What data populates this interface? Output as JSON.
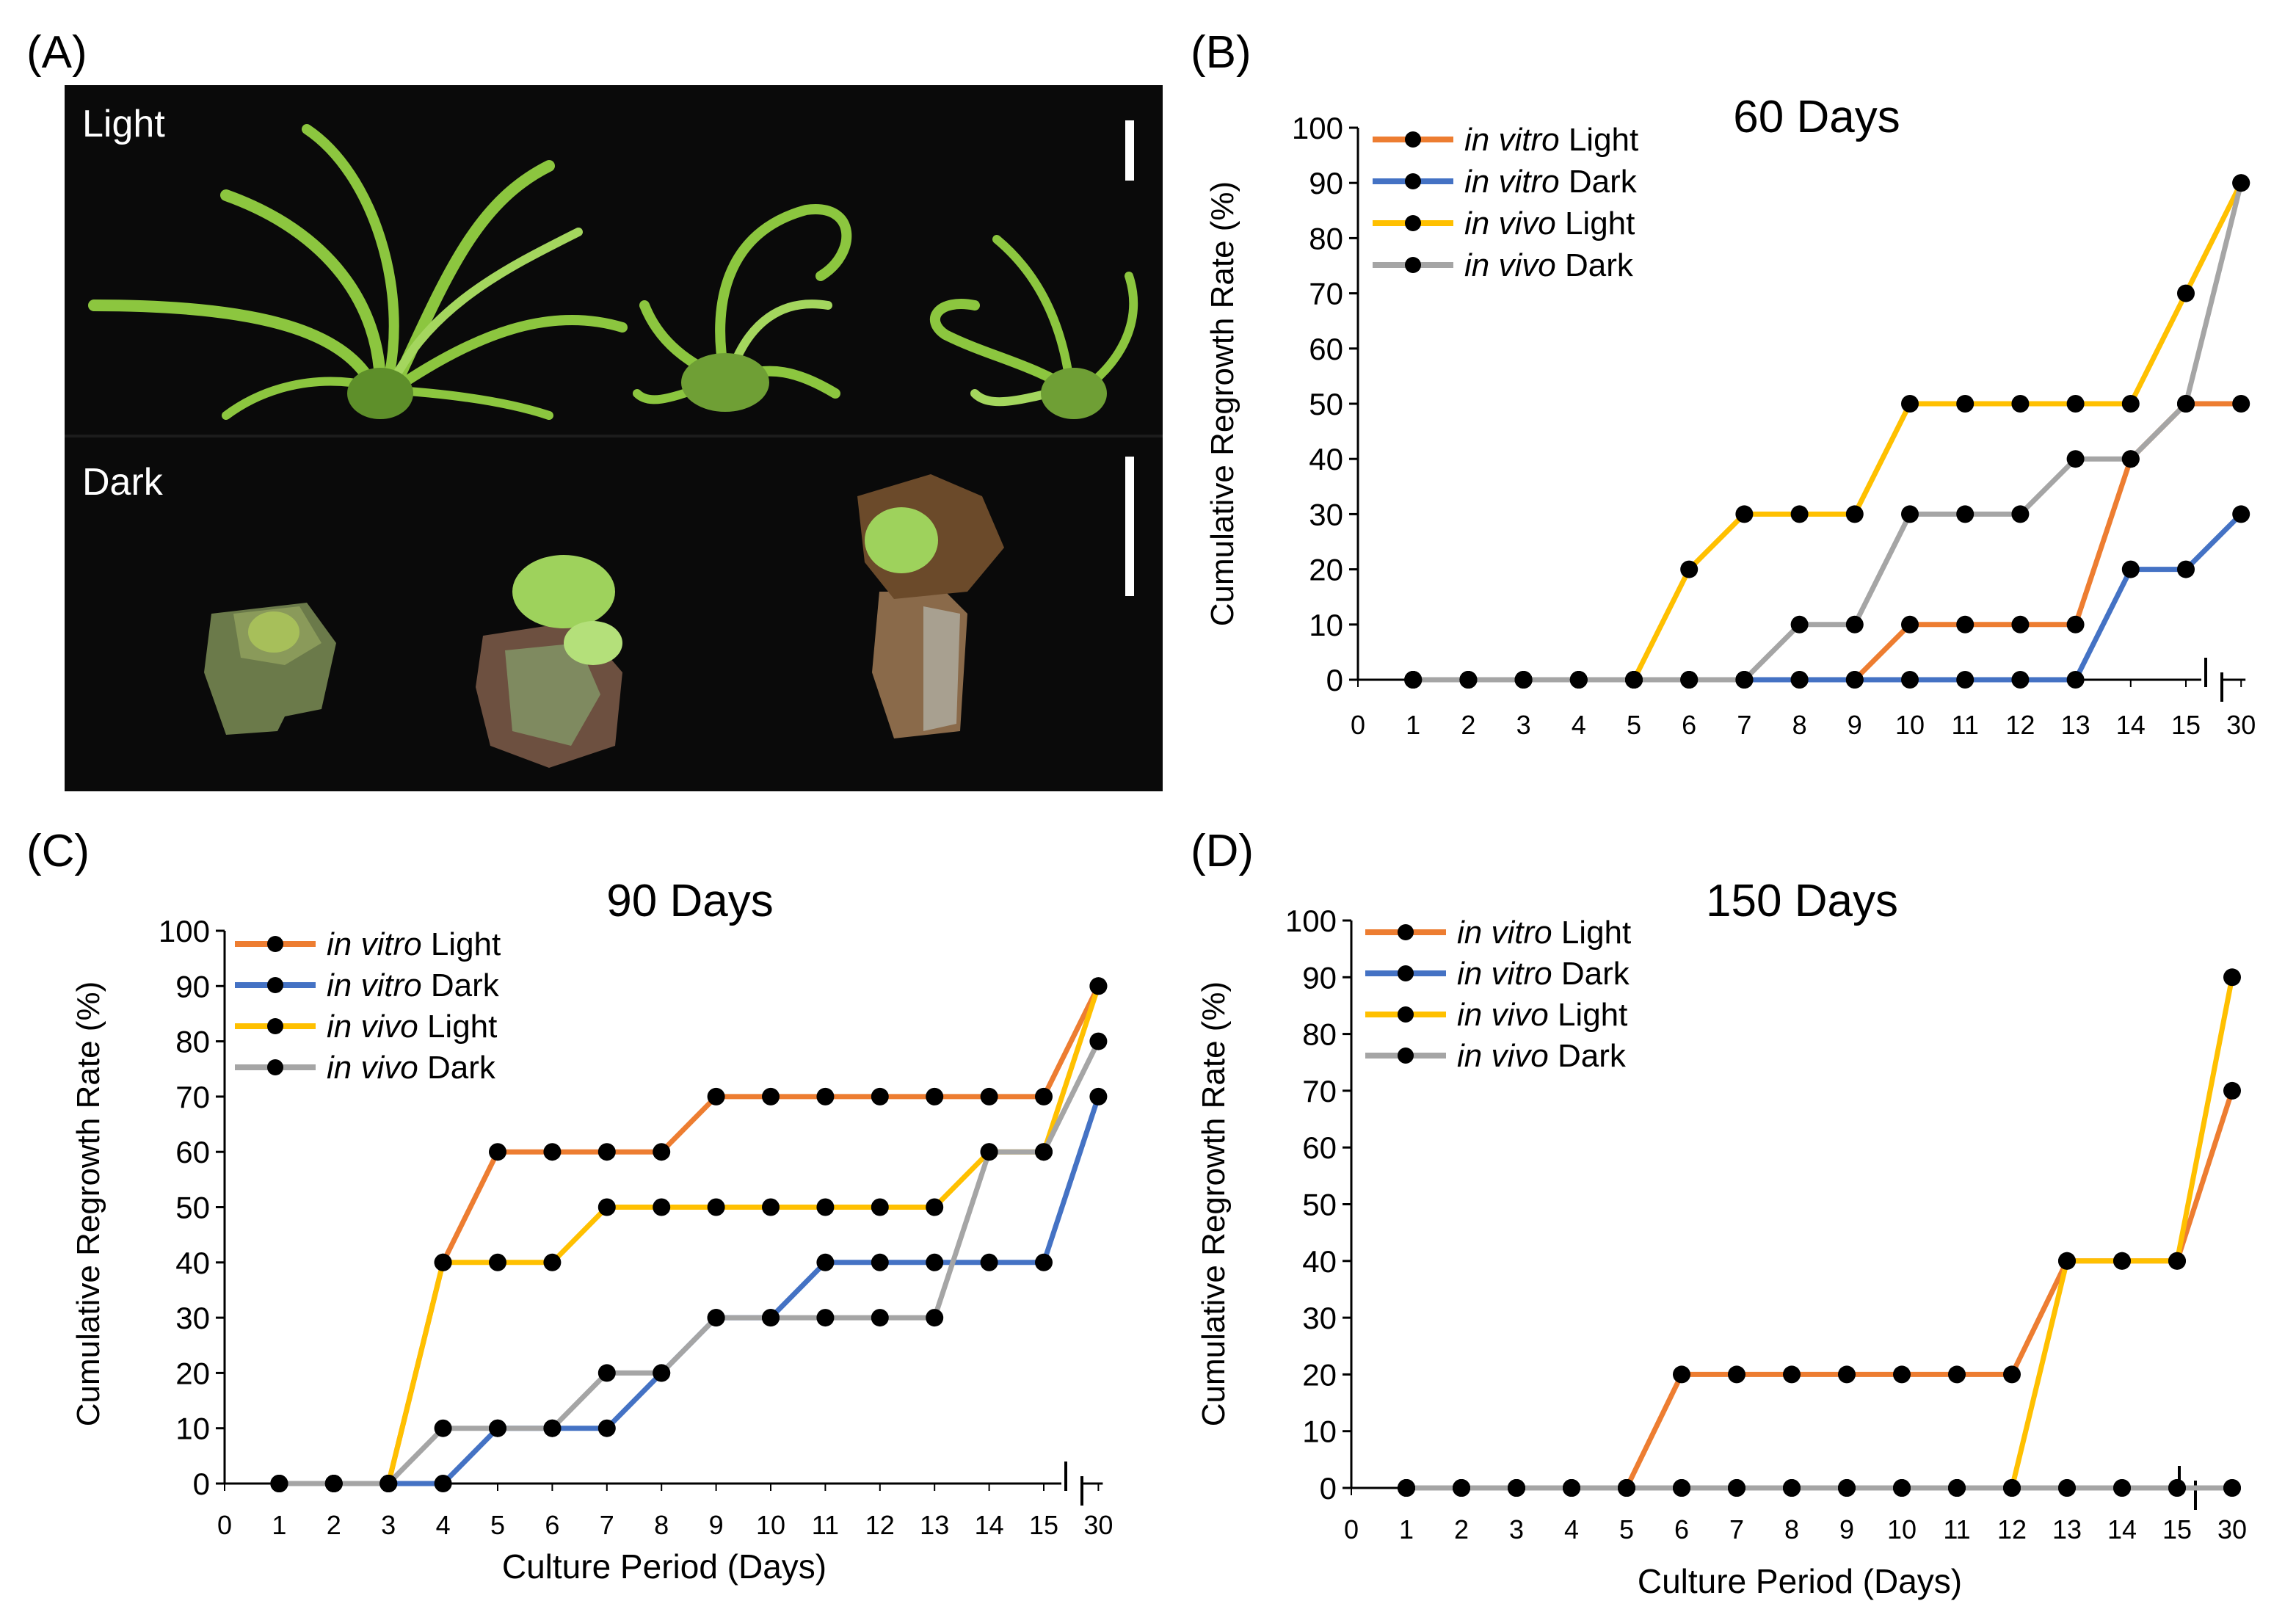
{
  "panel_labels": {
    "a": "(A)",
    "b": "(B)",
    "c": "(C)",
    "d": "(D)"
  },
  "photo": {
    "light_label": "Light",
    "dark_label": "Dark",
    "colors": {
      "background": "#0a0a0a",
      "leaf": "#8cc63f",
      "leaf_dark": "#5e8f2a",
      "stem": "#8a7a5a",
      "stem_brown": "#6b4a2a",
      "scale_bar": "#ffffff"
    }
  },
  "legend_entries": [
    {
      "italic": "in vitro",
      "rest": "Light",
      "color": "#ED7D31"
    },
    {
      "italic": "in vitro",
      "rest": "Dark",
      "color": "#4472C4"
    },
    {
      "italic": "in vivo",
      "rest": "Light",
      "color": "#FFC000"
    },
    {
      "italic": "in vivo",
      "rest": "Dark",
      "color": "#A5A5A5"
    }
  ],
  "chart_data": [
    {
      "id": "B",
      "type": "line",
      "title": "60 Days",
      "ylabel": "Cumulative  Regrowth  Rate  (%)",
      "xlabel": "",
      "ylim": [
        0,
        100
      ],
      "yticks": [
        "0",
        "10",
        "20",
        "30",
        "40",
        "50",
        "60",
        "70",
        "80",
        "90",
        "100"
      ],
      "categories": [
        "0",
        "1",
        "2",
        "3",
        "4",
        "5",
        "6",
        "7",
        "8",
        "9",
        "10",
        "11",
        "12",
        "13",
        "14",
        "15",
        "30"
      ],
      "axis_break": "between 15 and 30",
      "series": [
        {
          "name": "in vitro Light",
          "color": "#ED7D31",
          "values": [
            null,
            0,
            0,
            0,
            0,
            0,
            0,
            0,
            0,
            0,
            10,
            10,
            10,
            10,
            40,
            50,
            50
          ]
        },
        {
          "name": "in vitro Dark",
          "color": "#4472C4",
          "values": [
            null,
            0,
            0,
            0,
            0,
            0,
            0,
            0,
            0,
            0,
            0,
            0,
            0,
            0,
            20,
            20,
            30
          ]
        },
        {
          "name": "in vivo Light",
          "color": "#FFC000",
          "values": [
            null,
            0,
            0,
            0,
            0,
            0,
            20,
            30,
            30,
            30,
            50,
            50,
            50,
            50,
            50,
            70,
            90
          ]
        },
        {
          "name": "in vivo Dark",
          "color": "#A5A5A5",
          "values": [
            null,
            0,
            0,
            0,
            0,
            0,
            0,
            0,
            10,
            10,
            30,
            30,
            30,
            40,
            40,
            50,
            90
          ]
        }
      ]
    },
    {
      "id": "C",
      "type": "line",
      "title": "90 Days",
      "ylabel": "Cumulative  Regrowth  Rate  (%)",
      "xlabel": "Culture  Period  (Days)",
      "ylim": [
        0,
        100
      ],
      "yticks": [
        "0",
        "10",
        "20",
        "30",
        "40",
        "50",
        "60",
        "70",
        "80",
        "90",
        "100"
      ],
      "categories": [
        "0",
        "1",
        "2",
        "3",
        "4",
        "5",
        "6",
        "7",
        "8",
        "9",
        "10",
        "11",
        "12",
        "13",
        "14",
        "15",
        "30"
      ],
      "axis_break": "between 15 and 30",
      "series": [
        {
          "name": "in vitro Light",
          "color": "#ED7D31",
          "values": [
            null,
            0,
            0,
            0,
            40,
            60,
            60,
            60,
            60,
            70,
            70,
            70,
            70,
            70,
            70,
            70,
            90
          ]
        },
        {
          "name": "in vitro Dark",
          "color": "#4472C4",
          "values": [
            null,
            0,
            0,
            0,
            0,
            10,
            10,
            10,
            20,
            30,
            30,
            40,
            40,
            40,
            40,
            40,
            70
          ]
        },
        {
          "name": "in vivo Light",
          "color": "#FFC000",
          "values": [
            null,
            0,
            0,
            0,
            40,
            40,
            40,
            50,
            50,
            50,
            50,
            50,
            50,
            50,
            60,
            60,
            90
          ]
        },
        {
          "name": "in vivo Dark",
          "color": "#A5A5A5",
          "values": [
            null,
            0,
            0,
            0,
            10,
            10,
            10,
            20,
            20,
            30,
            30,
            30,
            30,
            30,
            60,
            60,
            80
          ]
        }
      ]
    },
    {
      "id": "D",
      "type": "line",
      "title": "150 Days",
      "ylabel": "Cumulative  Regrowth  Rate  (%)",
      "xlabel": "Culture  Period  (Days)",
      "ylim": [
        0,
        100
      ],
      "yticks": [
        "0",
        "10",
        "20",
        "30",
        "40",
        "50",
        "60",
        "70",
        "80",
        "90",
        "100"
      ],
      "categories": [
        "0",
        "1",
        "2",
        "3",
        "4",
        "5",
        "6",
        "7",
        "8",
        "9",
        "10",
        "11",
        "12",
        "13",
        "14",
        "15",
        "30"
      ],
      "axis_break": "between 15 and 30",
      "series": [
        {
          "name": "in vitro Light",
          "color": "#ED7D31",
          "values": [
            null,
            0,
            0,
            0,
            0,
            0,
            20,
            20,
            20,
            20,
            20,
            20,
            20,
            40,
            40,
            40,
            70
          ]
        },
        {
          "name": "in vitro Dark",
          "color": "#4472C4",
          "values": [
            null,
            0,
            0,
            0,
            0,
            0,
            0,
            0,
            0,
            0,
            0,
            0,
            0,
            0,
            0,
            0,
            0
          ]
        },
        {
          "name": "in vivo Light",
          "color": "#FFC000",
          "values": [
            null,
            0,
            0,
            0,
            0,
            0,
            0,
            0,
            0,
            0,
            0,
            0,
            0,
            40,
            40,
            40,
            90
          ]
        },
        {
          "name": "in vivo Dark",
          "color": "#A5A5A5",
          "values": [
            null,
            0,
            0,
            0,
            0,
            0,
            0,
            0,
            0,
            0,
            0,
            0,
            0,
            0,
            0,
            0,
            0
          ]
        }
      ]
    }
  ]
}
